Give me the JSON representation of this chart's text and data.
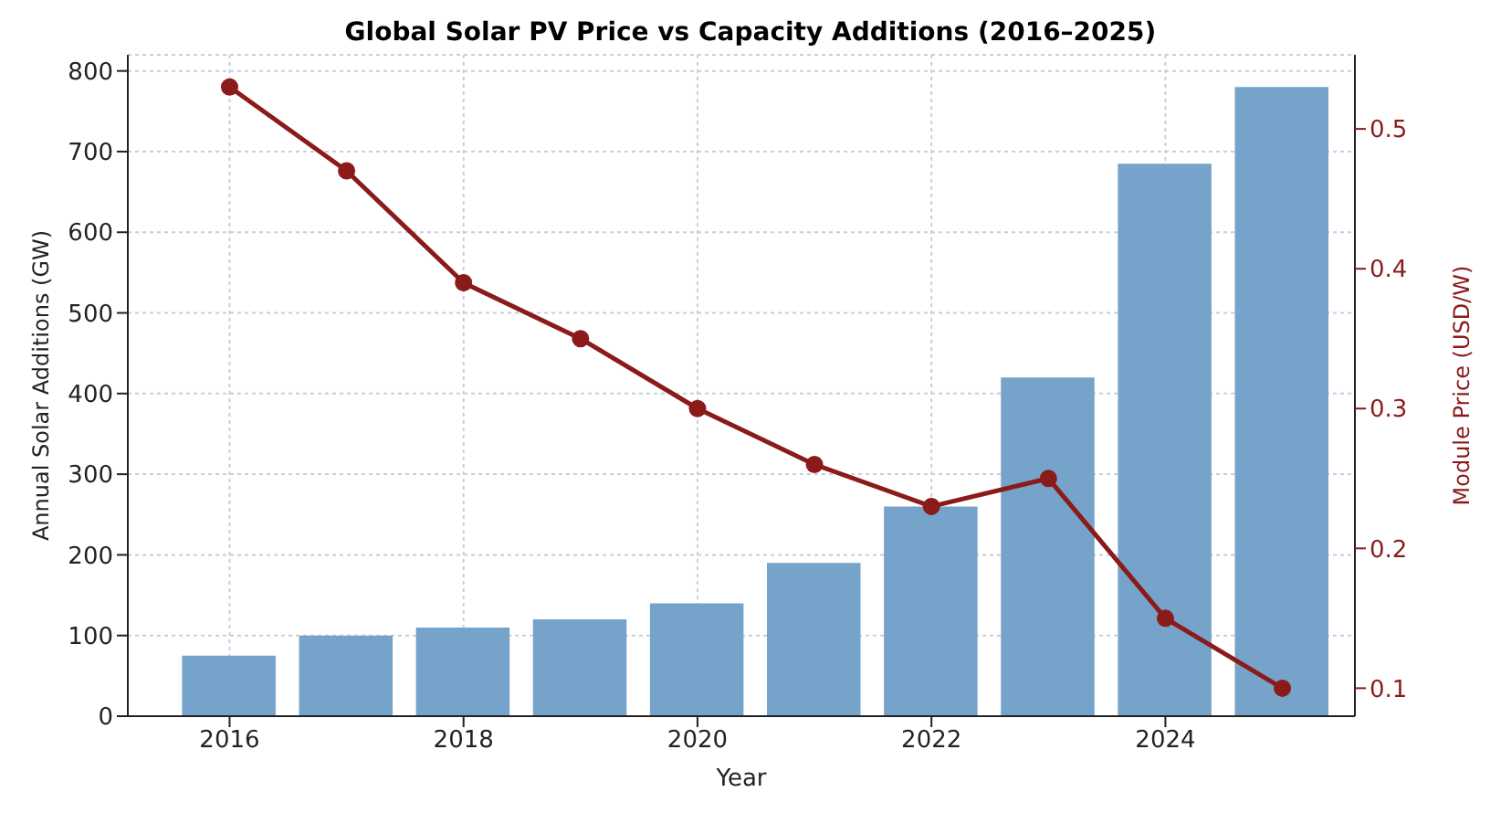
{
  "chart_data": {
    "type": "bar",
    "title": "Global Solar PV Price vs Capacity Additions (2016–2025)",
    "xlabel": "Year",
    "ylabel": "Annual Solar Additions (GW)",
    "y2label": "Module Price (USD/W)",
    "x": [
      2016,
      2017,
      2018,
      2019,
      2020,
      2021,
      2022,
      2023,
      2024,
      2025
    ],
    "series": [
      {
        "color": "#75a3c9",
        "values": [
          75,
          100,
          110,
          120,
          140,
          190,
          260,
          420,
          685,
          780
        ]
      },
      {
        "type": "line",
        "axis": "y2",
        "color": "#8b1a1a",
        "marker": "circle",
        "line_style": "solid",
        "values": [
          0.53,
          0.47,
          0.39,
          0.35,
          0.3,
          0.26,
          0.23,
          0.25,
          0.15,
          0.1
        ]
      }
    ],
    "xlim": [
      2015.13,
      2025.62
    ],
    "xticks": [
      2016,
      2018,
      2020,
      2022,
      2024
    ],
    "ylim": [
      0,
      820
    ],
    "yticks": [
      0,
      100,
      200,
      300,
      400,
      500,
      600,
      700,
      800
    ],
    "y2lim": [
      0.08,
      0.553
    ],
    "y2ticks": [
      0.1,
      0.2,
      0.3,
      0.4,
      0.5
    ],
    "grid": true,
    "legend": false
  }
}
